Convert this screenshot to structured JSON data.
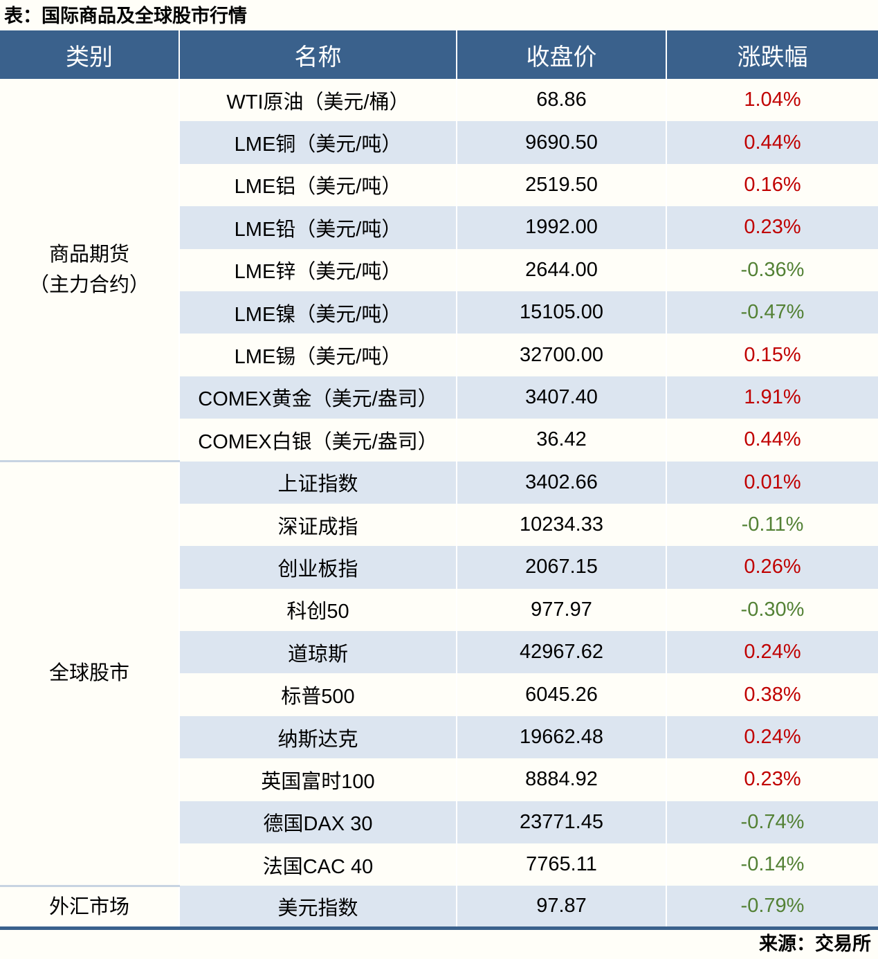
{
  "title": "表：国际商品及全球股市行情",
  "source": "来源：交易所",
  "colors": {
    "header_bg": "#3a618c",
    "stripe_bg": "#dce5f0",
    "up_red": "#c00000",
    "down_green": "#538135",
    "bottom_border": "#3a618c",
    "group_divider": "#c7d3e2"
  },
  "chart_data": {
    "type": "table",
    "columns": [
      "类别",
      "名称",
      "收盘价",
      "涨跌幅"
    ],
    "groups": [
      {
        "label": "商品期货\n（主力合约）",
        "rows": [
          {
            "name": "WTI原油（美元/桶）",
            "close": "68.86",
            "change": "1.04%"
          },
          {
            "name": "LME铜（美元/吨）",
            "close": "9690.50",
            "change": "0.44%"
          },
          {
            "name": "LME铝（美元/吨）",
            "close": "2519.50",
            "change": "0.16%"
          },
          {
            "name": "LME铅（美元/吨）",
            "close": "1992.00",
            "change": "0.23%"
          },
          {
            "name": "LME锌（美元/吨）",
            "close": "2644.00",
            "change": "-0.36%"
          },
          {
            "name": "LME镍（美元/吨）",
            "close": "15105.00",
            "change": "-0.47%"
          },
          {
            "name": "LME锡（美元/吨）",
            "close": "32700.00",
            "change": "0.15%"
          },
          {
            "name": "COMEX黄金（美元/盎司）",
            "close": "3407.40",
            "change": "1.91%"
          },
          {
            "name": "COMEX白银（美元/盎司）",
            "close": "36.42",
            "change": "0.44%"
          }
        ]
      },
      {
        "label": "全球股市",
        "rows": [
          {
            "name": "上证指数",
            "close": "3402.66",
            "change": "0.01%"
          },
          {
            "name": "深证成指",
            "close": "10234.33",
            "change": "-0.11%"
          },
          {
            "name": "创业板指",
            "close": "2067.15",
            "change": "0.26%"
          },
          {
            "name": "科创50",
            "close": "977.97",
            "change": "-0.30%"
          },
          {
            "name": "道琼斯",
            "close": "42967.62",
            "change": "0.24%"
          },
          {
            "name": "标普500",
            "close": "6045.26",
            "change": "0.38%"
          },
          {
            "name": "纳斯达克",
            "close": "19662.48",
            "change": "0.24%"
          },
          {
            "name": "英国富时100",
            "close": "8884.92",
            "change": "0.23%"
          },
          {
            "name": "德国DAX 30",
            "close": "23771.45",
            "change": "-0.74%"
          },
          {
            "name": "法国CAC 40",
            "close": "7765.11",
            "change": "-0.14%"
          }
        ]
      },
      {
        "label": "外汇市场",
        "rows": [
          {
            "name": "美元指数",
            "close": "97.87",
            "change": "-0.79%"
          }
        ]
      }
    ]
  }
}
